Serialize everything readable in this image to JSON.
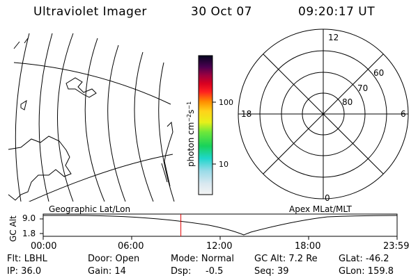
{
  "header": {
    "title": "Ultraviolet Imager",
    "date": "30 Oct 07",
    "time": "09:20:17 UT"
  },
  "color_bar": {
    "unit_label": "photon cm⁻²s⁻¹",
    "tick_100": "100",
    "tick_10": "10"
  },
  "polar_plot": {
    "mlt_labels": {
      "top": "12",
      "left": "18",
      "right": "6",
      "bottom": "0"
    },
    "lat_labels": [
      "60",
      "70",
      "80"
    ]
  },
  "map_labels": {
    "left": "Geographic Lat/Lon",
    "right": "Apex MLat/MLT"
  },
  "altitude_plot": {
    "ylabel": "GC Alt",
    "y_ticks": [
      "9.0",
      "1.8"
    ],
    "x_ticks": [
      "00:00",
      "06:00",
      "12:00",
      "18:00",
      "23:59"
    ],
    "current_time_fraction": 0.389
  },
  "status": {
    "flt_label": "Flt: LBHL",
    "ip_label": "IP: 36.0",
    "door_label": "Door: Open",
    "gain_label": "Gain: 14",
    "mode_label": "Mode: Normal",
    "dsp_label": "Dsp:",
    "dsp_value": "-0.5",
    "gcalt_label": "GC Alt: 7.2 Re",
    "seq_label": "Seq: 39",
    "glat_label": "GLat: -46.2",
    "glon_label": "GLon: 159.8"
  }
}
